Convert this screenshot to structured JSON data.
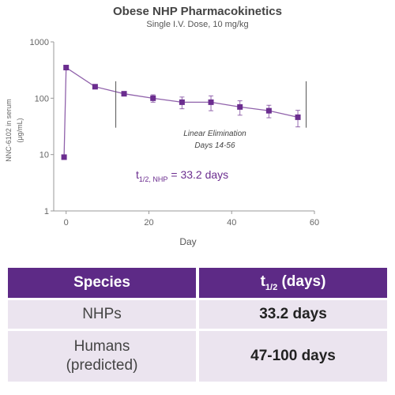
{
  "chart_data": {
    "type": "scatter",
    "title": "Obese NHP Pharmacokinetics",
    "subtitle": "Single I.V. Dose, 10 mg/kg",
    "xlabel": "Day",
    "ylabel_line1": "NNC-6102 in serum",
    "ylabel_line2": "(μg/mL)",
    "xlim": [
      -3,
      60
    ],
    "ylim": [
      1,
      1000
    ],
    "y_scale": "log",
    "x_ticks": [
      "0",
      "20",
      "40",
      "60"
    ],
    "y_ticks": [
      "1",
      "10",
      "100",
      "1000"
    ],
    "series": [
      {
        "x": [
          -0.5,
          0,
          7,
          14,
          21,
          28,
          35,
          42,
          49,
          56
        ],
        "y": [
          9,
          350,
          160,
          120,
          100,
          85,
          85,
          70,
          60,
          46
        ],
        "err": [
          0,
          0,
          0,
          0,
          15,
          20,
          25,
          20,
          15,
          15
        ],
        "color": "#6b2d8f"
      }
    ],
    "annotation_line1": "Linear Elimination",
    "annotation_line2": "Days 14-56",
    "halflife": {
      "symbol": "t",
      "subscript": "1/2, NHP",
      "value_text": "= 33.2 days"
    }
  },
  "table": {
    "headers": {
      "species": "Species",
      "halflife_symbol": "t",
      "halflife_subscript": "1/2",
      "halflife_unit": " (days)"
    },
    "rows": [
      {
        "species_line1": "NHPs",
        "species_line2": "",
        "value": "33.2 days"
      },
      {
        "species_line1": "Humans",
        "species_line2": "(predicted)",
        "value": "47-100 days"
      }
    ]
  },
  "colors": {
    "series": "#6b2d8f",
    "table_header": "#5d2a86",
    "table_cell": "#ebe4ef"
  }
}
